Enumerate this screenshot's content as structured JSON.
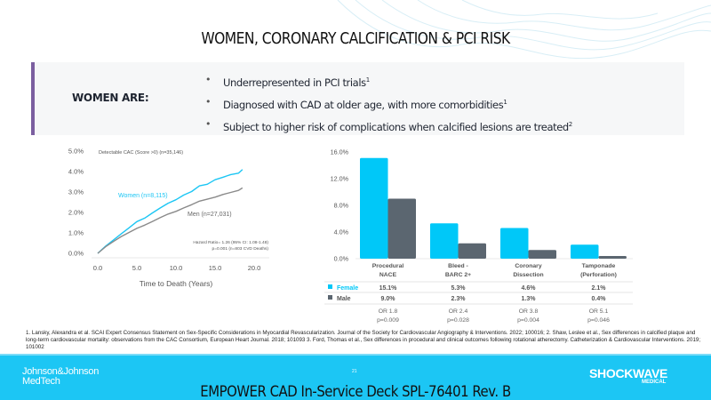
{
  "slide": {
    "title": "WOMEN, CORONARY CALCIFICATION & PCI RISK",
    "accent_color": "#7b5fa0"
  },
  "panel": {
    "label": "WOMEN ARE:",
    "bullets": [
      {
        "text": "Underrepresented in PCI trials",
        "sup": "1"
      },
      {
        "text": "Diagnosed with CAD at older age, with more comorbidities",
        "sup": "1"
      },
      {
        "text": "Subject to higher risk of complications when calcified lesions are treated",
        "sup": "2"
      }
    ]
  },
  "chart_data": [
    {
      "type": "line",
      "title": "Detectable CAC (Score >0) (n=35,146)",
      "xlabel": "Time to Death (Years)",
      "ylabel": "",
      "xlim": [
        0,
        20
      ],
      "ylim": [
        0,
        5
      ],
      "x_ticks": [
        "0.0",
        "5.0",
        "10.0",
        "15.0",
        "20.0"
      ],
      "y_ticks": [
        "0.0%",
        "1.0%",
        "2.0%",
        "3.0%",
        "4.0%",
        "5.0%"
      ],
      "series": [
        {
          "name": "Women (n=8,115)",
          "color": "#1cc6f4",
          "x": [
            0,
            1,
            2,
            3,
            4,
            5,
            6,
            7,
            8,
            9,
            10,
            11,
            12,
            13,
            14,
            15,
            16,
            17,
            18,
            18.5
          ],
          "y": [
            0.0,
            0.35,
            0.65,
            0.95,
            1.25,
            1.55,
            1.72,
            1.98,
            2.22,
            2.45,
            2.62,
            2.85,
            3.02,
            3.3,
            3.38,
            3.6,
            3.72,
            3.85,
            3.92,
            4.1
          ]
        },
        {
          "name": "Men (n=27,031)",
          "color": "#8a8a8a",
          "x": [
            0,
            1,
            2,
            3,
            4,
            5,
            6,
            7,
            8,
            9,
            10,
            11,
            12,
            13,
            14,
            15,
            16,
            17,
            18,
            18.5
          ],
          "y": [
            0.0,
            0.32,
            0.58,
            0.82,
            1.02,
            1.22,
            1.38,
            1.56,
            1.75,
            1.92,
            2.05,
            2.22,
            2.38,
            2.55,
            2.65,
            2.75,
            2.88,
            2.98,
            3.08,
            3.2
          ]
        }
      ],
      "annotations": [
        "Hazard Ratio= 1.26 (95% CI: 1.08-1.48)",
        "p=0.001 (n=803 CVD Deaths)"
      ]
    },
    {
      "type": "bar",
      "title": "",
      "categories": [
        "Procedural NACE",
        "Bleed - BARC 2+",
        "Coronary Dissection",
        "Tamponade (Perforation)"
      ],
      "category_lines": [
        [
          "Procedural",
          "NACE"
        ],
        [
          "Bleed -",
          "BARC 2+"
        ],
        [
          "Coronary",
          "Dissection"
        ],
        [
          "Tamponade",
          "(Perforation)"
        ]
      ],
      "ylim": [
        0,
        16
      ],
      "y_ticks": [
        "0.0%",
        "4.0%",
        "8.0%",
        "12.0%",
        "16.0%"
      ],
      "series": [
        {
          "name": "Female",
          "color": "#00c8f8",
          "values": [
            15.1,
            5.3,
            4.6,
            2.1
          ],
          "labels": [
            "15.1%",
            "5.3%",
            "4.6%",
            "2.1%"
          ]
        },
        {
          "name": "Male",
          "color": "#5b6670",
          "values": [
            9.0,
            2.3,
            1.3,
            0.4
          ],
          "labels": [
            "9.0%",
            "2.3%",
            "1.3%",
            "0.4%"
          ]
        }
      ],
      "odds_ratios": [
        "OR 1.8",
        "OR 2.4",
        "OR 3.8",
        "OR 5.1"
      ],
      "p_values": [
        "p=0.009",
        "p=0.028",
        "p=0.004",
        "p=0.046"
      ]
    }
  ],
  "footnote": "1. Lansky, Alexandra et al. SCAI Expert Consensus Statement on Sex-Specific Considerations in Myocardial Revascularization. Journal of the Society for Cardiovascular Angiography & Interventions. 2022; 100016; 2. Shaw, Leslee et al., Sex differences in calcified plaque and long-term cardiovascular mortality: observations from the CAC Consortium, European Heart Journal. 2018; 101093 3. Ford, Thomas et al., Sex differences in procedural and clinical outcomes following rotational atherectomy. Catheterization & Cardiovascular Interventions. 2019; 101002",
  "footer": {
    "brand_left_line1": "Johnson&Johnson",
    "brand_left_line2": "MedTech",
    "page_number": "21",
    "deck_title": "EMPOWER CAD In-Service Deck SPL-76401 Rev. B",
    "brand_right": "SHOCKWAVE",
    "brand_right_sub": "MEDICAL",
    "bar_color": "#1cc6f4"
  }
}
